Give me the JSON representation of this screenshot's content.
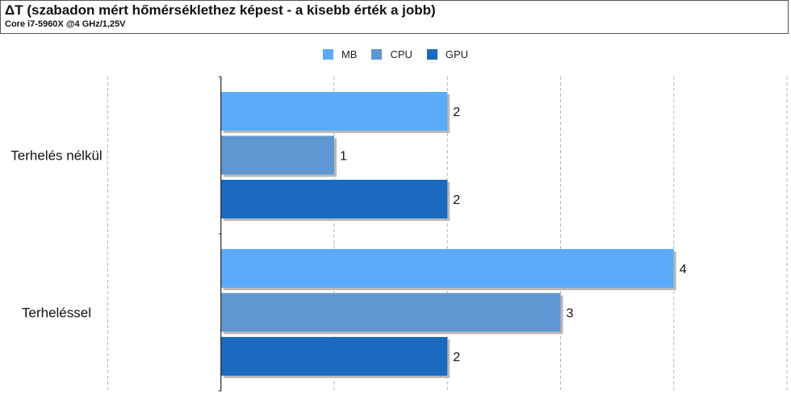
{
  "chart_data": {
    "type": "bar",
    "orientation": "horizontal",
    "title": "ΔT (szabadon mért hőmérséklethez képest - a kisebb érték a jobb)",
    "subtitle": "Core i7-5960X @4 GHz/1,25V",
    "categories": [
      "Terhelés nélkül",
      "Terheléssel"
    ],
    "series": [
      {
        "name": "MB",
        "values": [
          2,
          4
        ],
        "color": "#5aabfa"
      },
      {
        "name": "CPU",
        "values": [
          1,
          3
        ],
        "color": "#5e97d2"
      },
      {
        "name": "GPU",
        "values": [
          2,
          2
        ],
        "color": "#1a6bbf"
      }
    ],
    "xlim": [
      -1,
      5
    ],
    "grid": true,
    "legend": "top-center"
  }
}
